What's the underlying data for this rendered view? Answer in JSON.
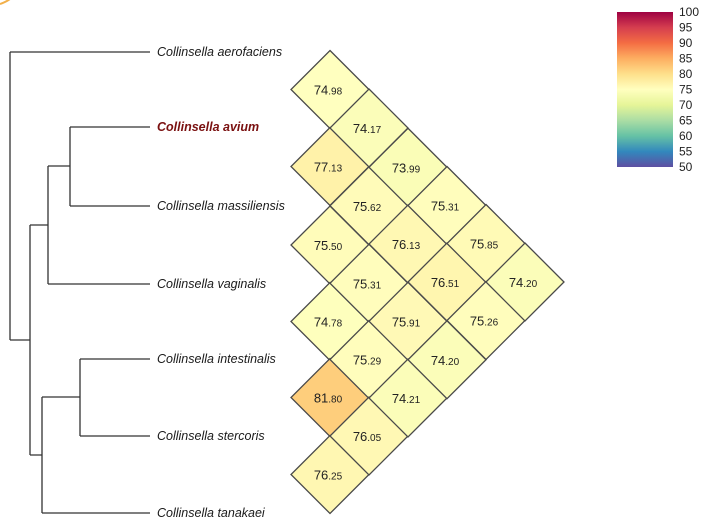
{
  "taxa": [
    {
      "name": "Collinsella aerofaciens",
      "highlight": false
    },
    {
      "name": "Collinsella avium",
      "highlight": true
    },
    {
      "name": "Collinsella massiliensis",
      "highlight": false
    },
    {
      "name": "Collinsella vaginalis",
      "highlight": false
    },
    {
      "name": "Collinsella intestinalis",
      "highlight": false
    },
    {
      "name": "Collinsella stercoris",
      "highlight": false
    },
    {
      "name": "Collinsella tanakaei",
      "highlight": false
    }
  ],
  "colorbar": {
    "ticks": [
      "100",
      "95",
      "90",
      "85",
      "80",
      "75",
      "70",
      "65",
      "60",
      "55",
      "50"
    ],
    "range": [
      50,
      100
    ],
    "colors": [
      "#9e0142",
      "#d53e4f",
      "#f46d43",
      "#fdae61",
      "#fee08b",
      "#ffffbf",
      "#e6f598",
      "#abdda4",
      "#66c2a5",
      "#3288bd",
      "#5e4fa2"
    ]
  },
  "matrix": [
    {
      "pair": [
        0,
        1
      ],
      "int": "74",
      "dec": ".98",
      "value": 74.98
    },
    {
      "pair": [
        1,
        2
      ],
      "int": "77",
      "dec": ".13",
      "value": 77.13
    },
    {
      "pair": [
        2,
        3
      ],
      "int": "75",
      "dec": ".50",
      "value": 75.5
    },
    {
      "pair": [
        3,
        4
      ],
      "int": "74",
      "dec": ".78",
      "value": 74.78
    },
    {
      "pair": [
        4,
        5
      ],
      "int": "81",
      "dec": ".80",
      "value": 81.8
    },
    {
      "pair": [
        5,
        6
      ],
      "int": "76",
      "dec": ".25",
      "value": 76.25
    },
    {
      "pair": [
        0,
        2
      ],
      "int": "74",
      "dec": ".17",
      "value": 74.17
    },
    {
      "pair": [
        1,
        3
      ],
      "int": "75",
      "dec": ".62",
      "value": 75.62
    },
    {
      "pair": [
        2,
        4
      ],
      "int": "75",
      "dec": ".31",
      "value": 75.31
    },
    {
      "pair": [
        3,
        5
      ],
      "int": "75",
      "dec": ".29",
      "value": 75.29
    },
    {
      "pair": [
        4,
        6
      ],
      "int": "76",
      "dec": ".05",
      "value": 76.05
    },
    {
      "pair": [
        0,
        3
      ],
      "int": "73",
      "dec": ".99",
      "value": 73.99
    },
    {
      "pair": [
        1,
        4
      ],
      "int": "76",
      "dec": ".13",
      "value": 76.13
    },
    {
      "pair": [
        2,
        5
      ],
      "int": "75",
      "dec": ".91",
      "value": 75.91
    },
    {
      "pair": [
        3,
        6
      ],
      "int": "74",
      "dec": ".21",
      "value": 74.21
    },
    {
      "pair": [
        0,
        4
      ],
      "int": "75",
      "dec": ".31",
      "value": 75.31
    },
    {
      "pair": [
        1,
        5
      ],
      "int": "76",
      "dec": ".51",
      "value": 76.51
    },
    {
      "pair": [
        2,
        6
      ],
      "int": "74",
      "dec": ".20",
      "value": 74.2
    },
    {
      "pair": [
        0,
        5
      ],
      "int": "75",
      "dec": ".85",
      "value": 75.85
    },
    {
      "pair": [
        1,
        6
      ],
      "int": "75",
      "dec": ".26",
      "value": 75.26
    },
    {
      "pair": [
        0,
        6
      ],
      "int": "74",
      "dec": ".20",
      "value": 74.2
    }
  ]
}
